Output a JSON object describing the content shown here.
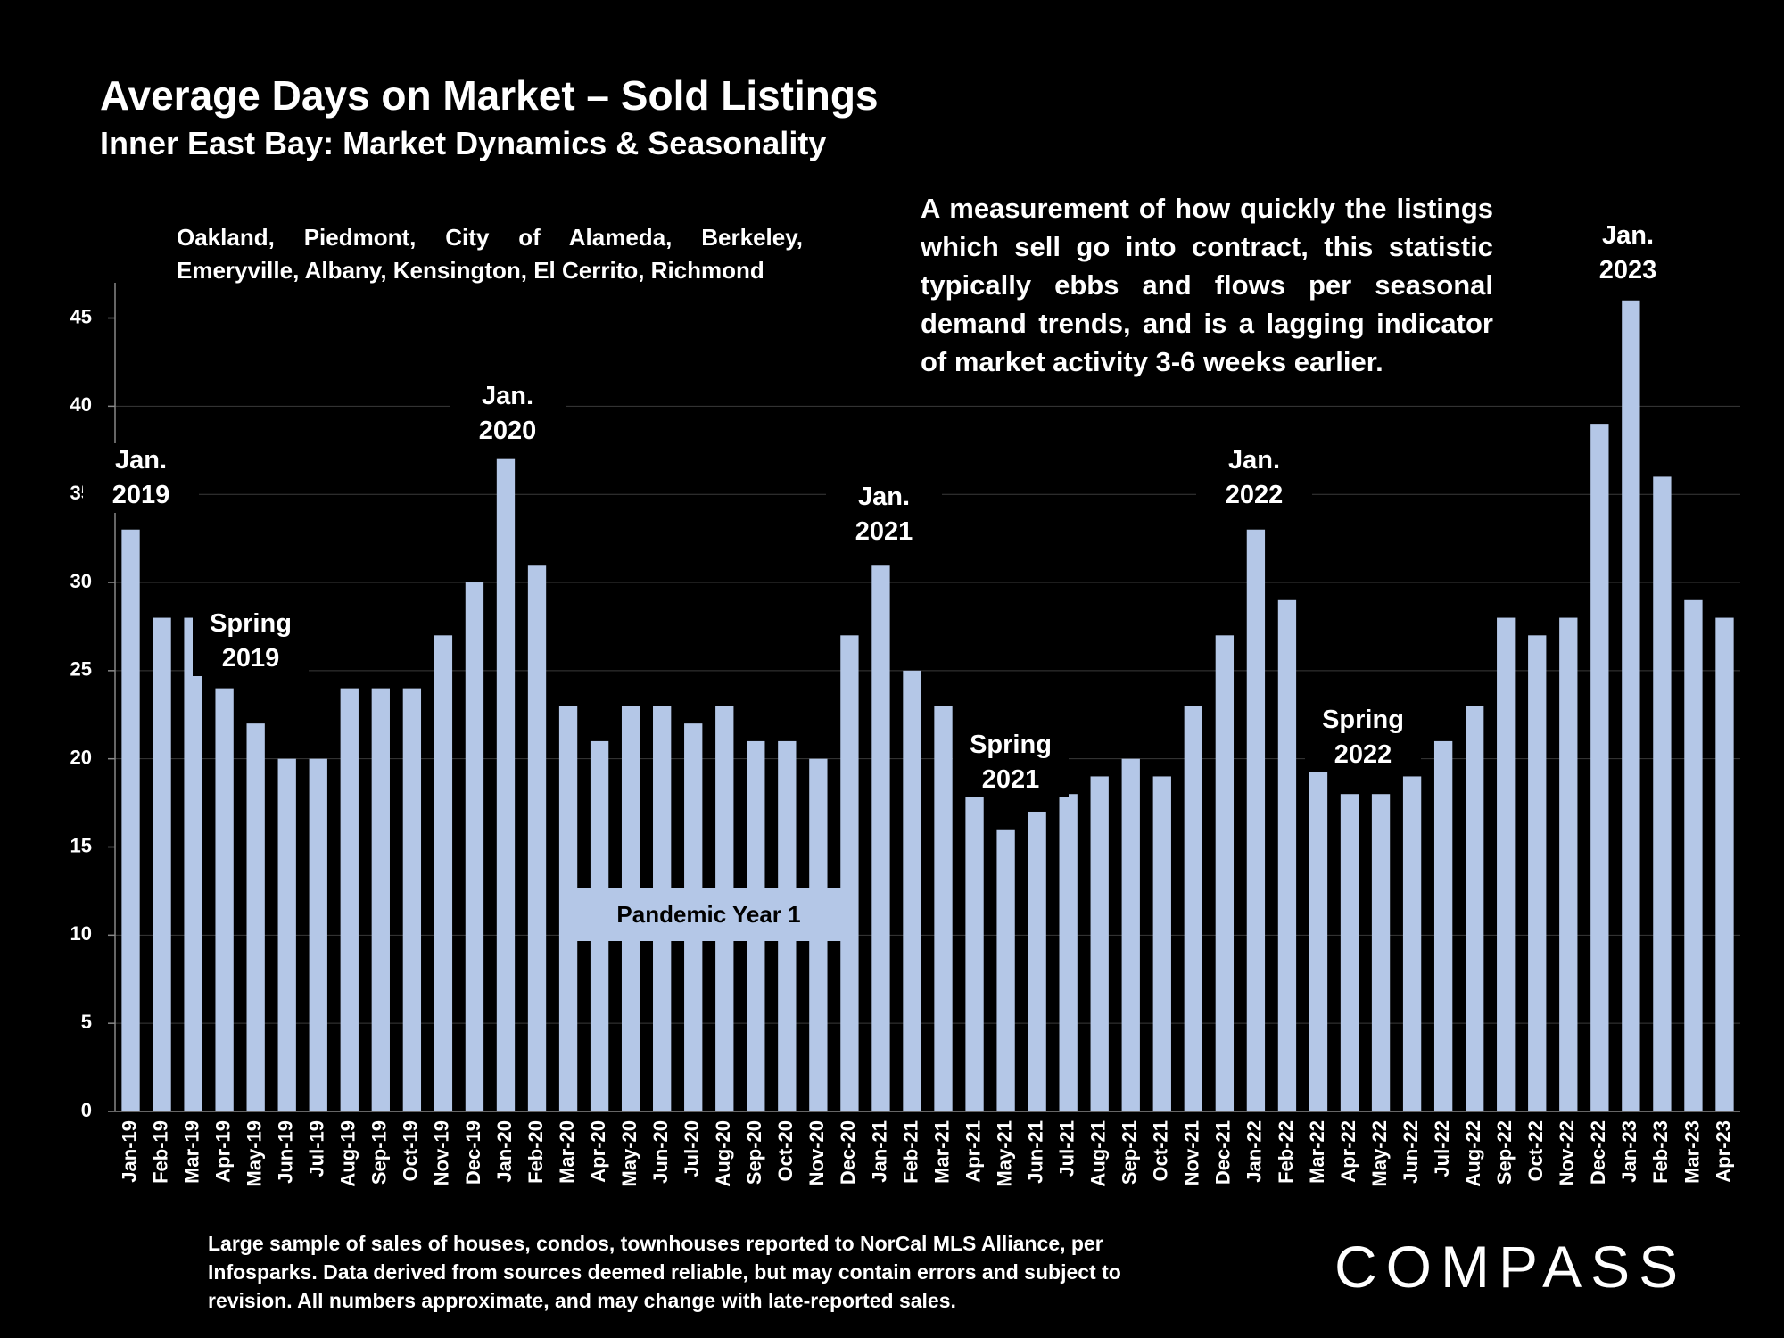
{
  "chart_data": {
    "type": "bar",
    "title": "Average Days on Market – Sold Listings",
    "subtitle": "Inner East Bay: Market Dynamics & Seasonality",
    "region_note": "Oakland, Piedmont, City of Alameda, Berkeley, Emeryville, Albany, Kensington, El Cerrito, Richmond",
    "description": "A measurement of how quickly the listings which sell go into contract, this statistic typically ebbs and flows per seasonal demand trends, and is a lagging indicator of market activity 3-6 weeks earlier.",
    "annotations": [
      "Jan. 2019",
      "Spring 2019",
      "Jan. 2020",
      "Jan. 2021",
      "Spring 2021",
      "Jan. 2022",
      "Spring 2022",
      "Jan. 2023",
      "Pandemic Year 1"
    ],
    "footnote": "Large sample of sales of houses, condos, townhouses reported to NorCal MLS Alliance, per Infosparks. Data derived from sources deemed reliable, but may contain errors and subject to revision. All numbers approximate, and may change with late-reported sales.",
    "brand": "COMPASS",
    "categories": [
      "Jan-19",
      "Feb-19",
      "Mar-19",
      "Apr-19",
      "May-19",
      "Jun-19",
      "Jul-19",
      "Aug-19",
      "Sep-19",
      "Oct-19",
      "Nov-19",
      "Dec-19",
      "Jan-20",
      "Feb-20",
      "Mar-20",
      "Apr-20",
      "May-20",
      "Jun-20",
      "Jul-20",
      "Aug-20",
      "Sep-20",
      "Oct-20",
      "Nov-20",
      "Dec-20",
      "Jan-21",
      "Feb-21",
      "Mar-21",
      "Apr-21",
      "May-21",
      "Jun-21",
      "Jul-21",
      "Aug-21",
      "Sep-21",
      "Oct-21",
      "Nov-21",
      "Dec-21",
      "Jan-22",
      "Feb-22",
      "Mar-22",
      "Apr-22",
      "May-22",
      "Jun-22",
      "Jul-22",
      "Aug-22",
      "Sep-22",
      "Oct-22",
      "Nov-22",
      "Dec-22",
      "Jan-23",
      "Feb-23",
      "Mar-23",
      "Apr-23"
    ],
    "values": [
      33,
      28,
      28,
      24,
      22,
      20,
      20,
      24,
      24,
      24,
      27,
      30,
      37,
      31,
      23,
      21,
      23,
      23,
      22,
      23,
      21,
      21,
      20,
      27,
      31,
      25,
      23,
      18,
      16,
      17,
      18,
      19,
      20,
      19,
      23,
      27,
      33,
      29,
      20,
      18,
      18,
      19,
      21,
      23,
      28,
      27,
      28,
      39,
      46,
      36,
      29,
      28
    ],
    "color": "#b4c7e7",
    "ylim": [
      0,
      47
    ],
    "yticks": [
      0,
      5,
      10,
      15,
      20,
      25,
      30,
      35,
      40,
      45
    ],
    "grid": true
  }
}
